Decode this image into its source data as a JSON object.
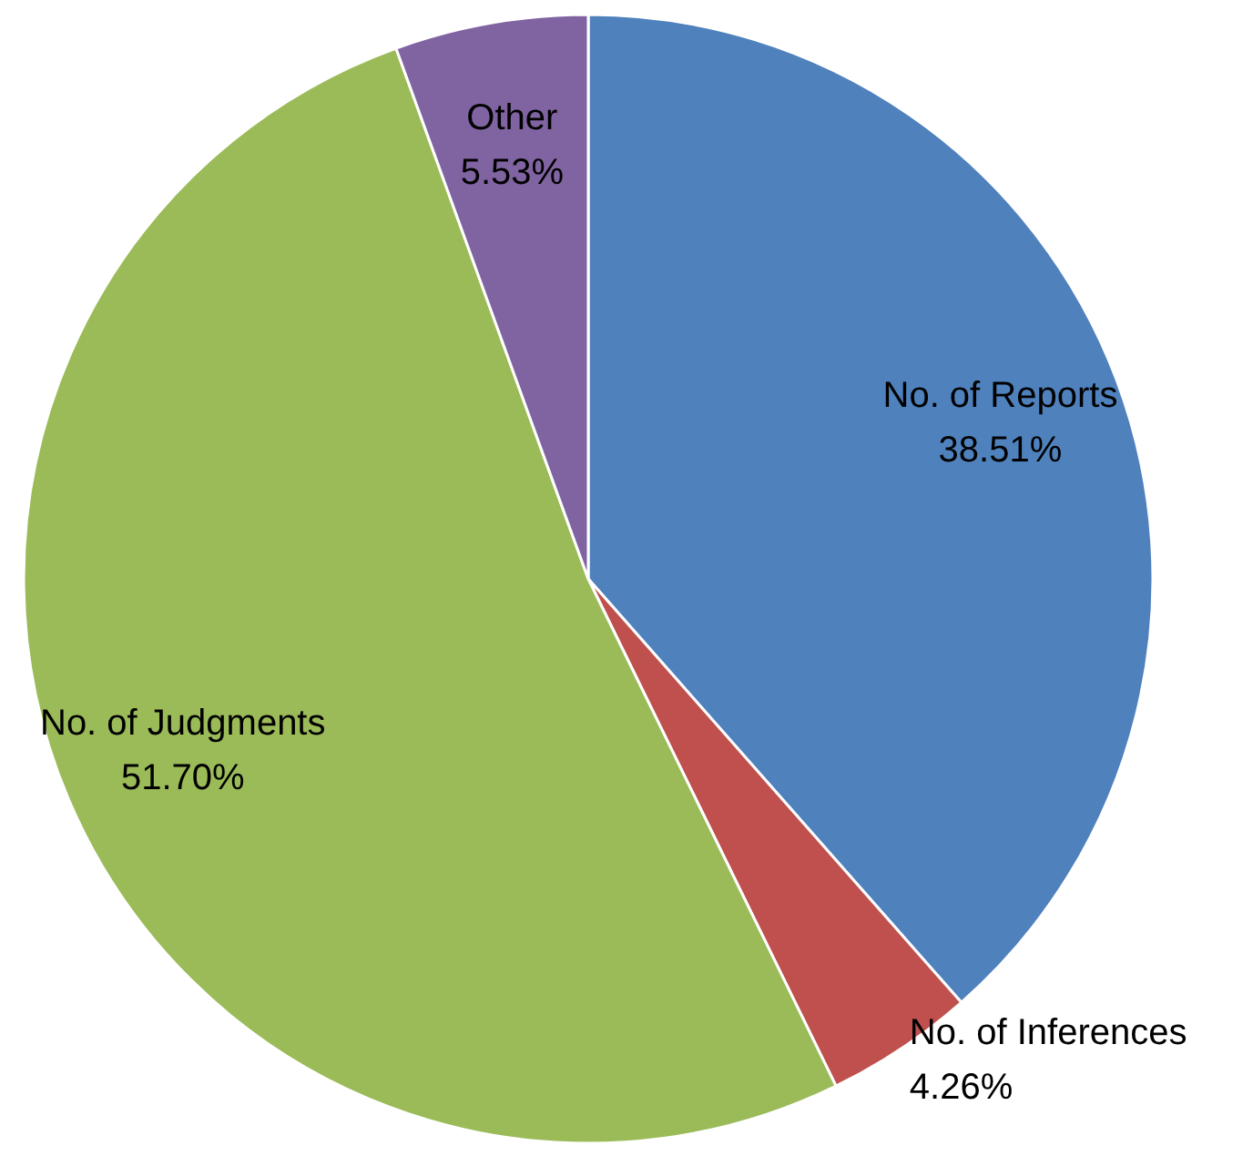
{
  "chart_data": {
    "type": "pie",
    "categories": [
      "No. of Reports",
      "No. of Inferences",
      "No. of Judgments",
      "Other"
    ],
    "values": [
      38.51,
      4.26,
      51.7,
      5.53
    ],
    "colors": [
      "#4f81bd",
      "#c0504d",
      "#9bbb59",
      "#8064a2"
    ],
    "value_labels": [
      "38.51%",
      "4.26%",
      "51.70%",
      "5.53%"
    ],
    "legend": false
  }
}
